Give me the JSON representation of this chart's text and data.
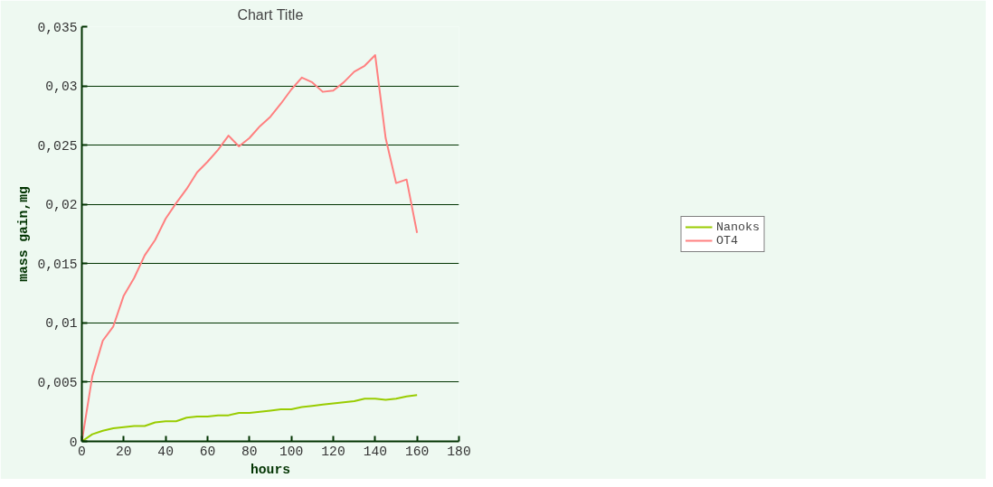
{
  "chart_data": {
    "type": "line",
    "title": "Chart Title",
    "xlabel": "hours",
    "ylabel": "mass gain,mg",
    "x": [
      0,
      5,
      10,
      15,
      20,
      25,
      30,
      35,
      40,
      45,
      50,
      55,
      60,
      65,
      70,
      75,
      80,
      85,
      90,
      95,
      100,
      105,
      110,
      115,
      120,
      125,
      130,
      135,
      140,
      145,
      150,
      155,
      160
    ],
    "series": [
      {
        "name": "Nanoks",
        "color": "#99cc00",
        "values": [
          0,
          0.0006,
          0.0009,
          0.0011,
          0.0012,
          0.0013,
          0.0013,
          0.0016,
          0.0017,
          0.0017,
          0.002,
          0.0021,
          0.0021,
          0.0022,
          0.0022,
          0.0024,
          0.0024,
          0.0025,
          0.0026,
          0.0027,
          0.0027,
          0.0029,
          0.003,
          0.0031,
          0.0032,
          0.0033,
          0.0034,
          0.0036,
          0.0036,
          0.0035,
          0.0036,
          0.0038,
          0.0039
        ]
      },
      {
        "name": "OT4",
        "color": "#ff8080",
        "values": [
          0,
          0.0055,
          0.0085,
          0.0097,
          0.0123,
          0.0138,
          0.0157,
          0.017,
          0.0188,
          0.0201,
          0.0213,
          0.0227,
          0.0236,
          0.0246,
          0.0258,
          0.0249,
          0.0256,
          0.0266,
          0.0274,
          0.0285,
          0.0297,
          0.0307,
          0.0303,
          0.0295,
          0.0296,
          0.0303,
          0.0312,
          0.0317,
          0.0326,
          0.0256,
          0.0218,
          0.0221,
          0.0176
        ]
      }
    ],
    "xlim": [
      0,
      180
    ],
    "xticks": [
      0,
      20,
      40,
      60,
      80,
      100,
      120,
      140,
      160,
      180
    ],
    "ylim": [
      0,
      0.035
    ],
    "yticks": [
      0,
      {
        "value": 0.005,
        "label": "0,005"
      },
      {
        "value": 0.01,
        "label": "0,01"
      },
      {
        "value": 0.015,
        "label": "0,015"
      },
      {
        "value": 0.02,
        "label": "0,02"
      },
      {
        "value": 0.025,
        "label": "0,025"
      },
      {
        "value": 0.03,
        "label": "0,03"
      },
      {
        "value": 0.035,
        "label": "0,035"
      }
    ],
    "grid": "y",
    "legend": "right",
    "marker": "none",
    "line_style": "solid"
  }
}
